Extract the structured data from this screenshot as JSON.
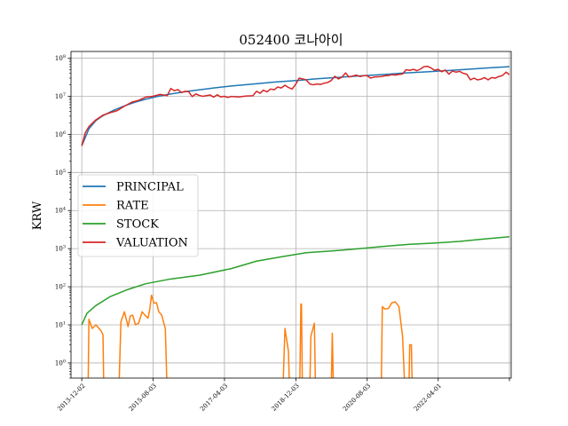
{
  "chart_data": {
    "type": "line",
    "title": "052400 코나아이",
    "xlabel": "",
    "ylabel": "KRW",
    "y_scale": "log",
    "ylim": [
      0.4,
      150000000
    ],
    "xlim": [
      "2013-09-01",
      "2023-12-15"
    ],
    "grid": true,
    "legend_position": "center-left",
    "y_tick_labels": [
      "10^0",
      "10^1",
      "10^2",
      "10^3",
      "10^4",
      "10^5",
      "10^6",
      "10^7",
      "10^8"
    ],
    "x_tick_labels": [
      "2013-12-02",
      "2015-08-03",
      "2017-04-03",
      "2018-12-03",
      "2020-08-03",
      "2022-04-01",
      ""
    ],
    "x_ticks": [
      "2013-12-02",
      "2015-08-03",
      "2017-04-03",
      "2018-12-03",
      "2020-08-03",
      "2022-04-01",
      "2023-11-30"
    ],
    "series": [
      {
        "name": "PRINCIPAL",
        "color": "#1f77b4",
        "points": [
          [
            "2013-12-02",
            500000
          ],
          [
            "2014-02-01",
            1400000
          ],
          [
            "2014-04-01",
            2300000
          ],
          [
            "2014-06-01",
            3100000
          ],
          [
            "2014-09-01",
            4300000
          ],
          [
            "2014-12-01",
            5600000
          ],
          [
            "2015-03-01",
            7000000
          ],
          [
            "2015-06-01",
            8400000
          ],
          [
            "2015-09-01",
            9800000
          ],
          [
            "2016-01-01",
            11500000
          ],
          [
            "2016-06-01",
            13600000
          ],
          [
            "2017-01-01",
            16500000
          ],
          [
            "2017-06-01",
            18600000
          ],
          [
            "2018-01-01",
            21300000
          ],
          [
            "2018-06-01",
            23500000
          ],
          [
            "2019-01-01",
            26300000
          ],
          [
            "2019-06-01",
            28800000
          ],
          [
            "2020-01-01",
            31800000
          ],
          [
            "2020-06-01",
            34200000
          ],
          [
            "2021-01-01",
            37500000
          ],
          [
            "2021-06-01",
            40500000
          ],
          [
            "2022-01-01",
            44000000
          ],
          [
            "2022-06-01",
            47000000
          ],
          [
            "2023-01-01",
            51500000
          ],
          [
            "2023-06-01",
            55500000
          ],
          [
            "2023-11-30",
            60000000
          ]
        ]
      },
      {
        "name": "RATE",
        "color": "#ff7f0e",
        "segments": [
          [
            [
              "2014-01-25",
              0.2
            ],
            [
              "2014-02-01",
              14
            ],
            [
              "2014-03-01",
              8
            ],
            [
              "2014-04-01",
              10
            ],
            [
              "2014-05-15",
              7
            ],
            [
              "2014-06-01",
              5.5
            ],
            [
              "2014-06-08",
              0.2
            ]
          ],
          [
            [
              "2014-10-15",
              0.2
            ],
            [
              "2014-11-01",
              12
            ],
            [
              "2014-12-01",
              22
            ],
            [
              "2015-01-01",
              9
            ],
            [
              "2015-01-20",
              17
            ],
            [
              "2015-02-10",
              18
            ],
            [
              "2015-03-05",
              10
            ],
            [
              "2015-04-01",
              11
            ],
            [
              "2015-05-01",
              22
            ],
            [
              "2015-06-01",
              17
            ],
            [
              "2015-06-20",
              15
            ],
            [
              "2015-07-05",
              25
            ],
            [
              "2015-07-20",
              60
            ],
            [
              "2015-08-10",
              37
            ],
            [
              "2015-09-01",
              38
            ],
            [
              "2015-09-20",
              22
            ],
            [
              "2015-10-15",
              18
            ],
            [
              "2015-11-15",
              8
            ],
            [
              "2015-11-30",
              0.2
            ]
          ],
          [
            [
              "2018-08-15",
              0.2
            ],
            [
              "2018-09-01",
              8
            ],
            [
              "2018-10-01",
              2
            ],
            [
              "2018-10-10",
              0.2
            ]
          ],
          [
            [
              "2019-01-05",
              0.2
            ],
            [
              "2019-01-15",
              35
            ],
            [
              "2019-01-20",
              35
            ],
            [
              "2019-01-28",
              0.2
            ]
          ],
          [
            [
              "2019-04-01",
              0.2
            ],
            [
              "2019-04-10",
              5
            ],
            [
              "2019-05-10",
              11
            ],
            [
              "2019-05-20",
              0.2
            ]
          ],
          [
            [
              "2019-10-01",
              0.2
            ],
            [
              "2019-10-10",
              6
            ],
            [
              "2019-10-20",
              0.2
            ]
          ],
          [
            [
              "2020-12-01",
              0.2
            ],
            [
              "2020-12-10",
              30
            ],
            [
              "2021-01-01",
              26
            ],
            [
              "2021-02-01",
              27
            ],
            [
              "2021-03-01",
              38
            ],
            [
              "2021-04-01",
              40
            ],
            [
              "2021-05-01",
              30
            ],
            [
              "2021-06-01",
              5
            ],
            [
              "2021-06-20",
              0.2
            ]
          ],
          [
            [
              "2021-07-25",
              0.2
            ],
            [
              "2021-08-01",
              3
            ],
            [
              "2021-08-15",
              3
            ],
            [
              "2021-08-22",
              0.2
            ]
          ]
        ]
      },
      {
        "name": "STOCK",
        "color": "#2ca02c",
        "points": [
          [
            "2013-12-02",
            10
          ],
          [
            "2014-01-15",
            20
          ],
          [
            "2014-04-01",
            32
          ],
          [
            "2014-08-01",
            55
          ],
          [
            "2015-01-01",
            85
          ],
          [
            "2015-06-01",
            120
          ],
          [
            "2016-01-01",
            160
          ],
          [
            "2016-09-01",
            200
          ],
          [
            "2017-06-01",
            300
          ],
          [
            "2018-01-01",
            470
          ],
          [
            "2018-08-01",
            610
          ],
          [
            "2019-03-01",
            780
          ],
          [
            "2019-11-01",
            880
          ],
          [
            "2020-06-01",
            1000
          ],
          [
            "2021-01-01",
            1150
          ],
          [
            "2021-08-01",
            1300
          ],
          [
            "2022-03-01",
            1400
          ],
          [
            "2022-10-01",
            1550
          ],
          [
            "2023-05-01",
            1800
          ],
          [
            "2023-11-30",
            2050
          ]
        ]
      },
      {
        "name": "VALUATION",
        "color": "#d62728",
        "points": [
          [
            "2013-12-02",
            500000
          ],
          [
            "2014-01-01",
            1100000
          ],
          [
            "2014-02-01",
            1600000
          ],
          [
            "2014-04-01",
            2400000
          ],
          [
            "2014-06-01",
            3200000
          ],
          [
            "2014-08-01",
            3700000
          ],
          [
            "2014-10-01",
            4200000
          ],
          [
            "2014-12-01",
            5500000
          ],
          [
            "2015-02-01",
            7000000
          ],
          [
            "2015-04-01",
            7800000
          ],
          [
            "2015-06-01",
            9500000
          ],
          [
            "2015-08-01",
            10000000
          ],
          [
            "2015-10-01",
            11200000
          ],
          [
            "2015-12-01",
            10400000
          ],
          [
            "2016-01-01",
            16000000
          ],
          [
            "2016-02-01",
            14000000
          ],
          [
            "2016-03-01",
            15000000
          ],
          [
            "2016-04-01",
            12500000
          ],
          [
            "2016-05-01",
            13500000
          ],
          [
            "2016-06-01",
            13200000
          ],
          [
            "2016-07-01",
            9800000
          ],
          [
            "2016-08-01",
            11500000
          ],
          [
            "2016-09-01",
            10500000
          ],
          [
            "2016-10-01",
            10000000
          ],
          [
            "2016-11-01",
            10400000
          ],
          [
            "2016-12-01",
            10800000
          ],
          [
            "2017-01-01",
            9500000
          ],
          [
            "2017-02-01",
            11000000
          ],
          [
            "2017-03-01",
            9600000
          ],
          [
            "2017-04-01",
            10000000
          ],
          [
            "2017-05-01",
            9300000
          ],
          [
            "2017-06-01",
            9900000
          ],
          [
            "2017-08-01",
            9600000
          ],
          [
            "2017-10-01",
            10100000
          ],
          [
            "2017-12-01",
            10300000
          ],
          [
            "2018-01-01",
            13500000
          ],
          [
            "2018-02-01",
            12000000
          ],
          [
            "2018-03-01",
            14500000
          ],
          [
            "2018-04-01",
            13000000
          ],
          [
            "2018-05-01",
            15500000
          ],
          [
            "2018-06-01",
            14800000
          ],
          [
            "2018-07-01",
            17500000
          ],
          [
            "2018-08-01",
            16500000
          ],
          [
            "2018-09-01",
            19500000
          ],
          [
            "2018-10-01",
            17000000
          ],
          [
            "2018-11-01",
            15500000
          ],
          [
            "2018-12-01",
            20500000
          ],
          [
            "2019-01-01",
            30000000
          ],
          [
            "2019-02-01",
            28500000
          ],
          [
            "2019-03-01",
            27000000
          ],
          [
            "2019-04-01",
            21000000
          ],
          [
            "2019-05-01",
            20000000
          ],
          [
            "2019-06-01",
            21000000
          ],
          [
            "2019-07-01",
            20500000
          ],
          [
            "2019-08-01",
            22000000
          ],
          [
            "2019-09-01",
            23000000
          ],
          [
            "2019-10-01",
            26000000
          ],
          [
            "2019-11-01",
            33500000
          ],
          [
            "2019-12-01",
            28500000
          ],
          [
            "2020-01-01",
            32000000
          ],
          [
            "2020-02-01",
            41000000
          ],
          [
            "2020-03-01",
            32000000
          ],
          [
            "2020-04-01",
            34000000
          ],
          [
            "2020-05-01",
            36000000
          ],
          [
            "2020-06-01",
            33000000
          ],
          [
            "2020-07-01",
            34500000
          ],
          [
            "2020-08-01",
            35000000
          ],
          [
            "2020-09-01",
            30000000
          ],
          [
            "2020-10-01",
            32000000
          ],
          [
            "2020-11-01",
            32500000
          ],
          [
            "2020-12-01",
            33000000
          ],
          [
            "2021-01-01",
            34500000
          ],
          [
            "2021-02-01",
            35000000
          ],
          [
            "2021-03-01",
            37000000
          ],
          [
            "2021-04-01",
            36000000
          ],
          [
            "2021-05-01",
            37500000
          ],
          [
            "2021-06-01",
            38500000
          ],
          [
            "2021-07-01",
            50000000
          ],
          [
            "2021-08-01",
            48000000
          ],
          [
            "2021-09-01",
            51000000
          ],
          [
            "2021-10-01",
            47000000
          ],
          [
            "2021-11-01",
            52000000
          ],
          [
            "2021-12-01",
            60000000
          ],
          [
            "2022-01-01",
            61000000
          ],
          [
            "2022-02-01",
            55000000
          ],
          [
            "2022-03-01",
            48000000
          ],
          [
            "2022-04-01",
            51000000
          ],
          [
            "2022-05-01",
            44000000
          ],
          [
            "2022-06-01",
            49000000
          ],
          [
            "2022-07-01",
            38000000
          ],
          [
            "2022-08-01",
            46000000
          ],
          [
            "2022-09-01",
            43000000
          ],
          [
            "2022-10-01",
            45000000
          ],
          [
            "2022-11-01",
            40000000
          ],
          [
            "2022-12-01",
            38000000
          ],
          [
            "2023-01-01",
            27000000
          ],
          [
            "2023-02-01",
            30000000
          ],
          [
            "2023-03-01",
            27000000
          ],
          [
            "2023-04-01",
            28000000
          ],
          [
            "2023-05-01",
            31000000
          ],
          [
            "2023-06-01",
            27000000
          ],
          [
            "2023-07-01",
            31000000
          ],
          [
            "2023-08-01",
            30000000
          ],
          [
            "2023-09-01",
            33000000
          ],
          [
            "2023-10-01",
            35000000
          ],
          [
            "2023-11-01",
            43000000
          ],
          [
            "2023-11-30",
            37000000
          ]
        ]
      }
    ]
  }
}
